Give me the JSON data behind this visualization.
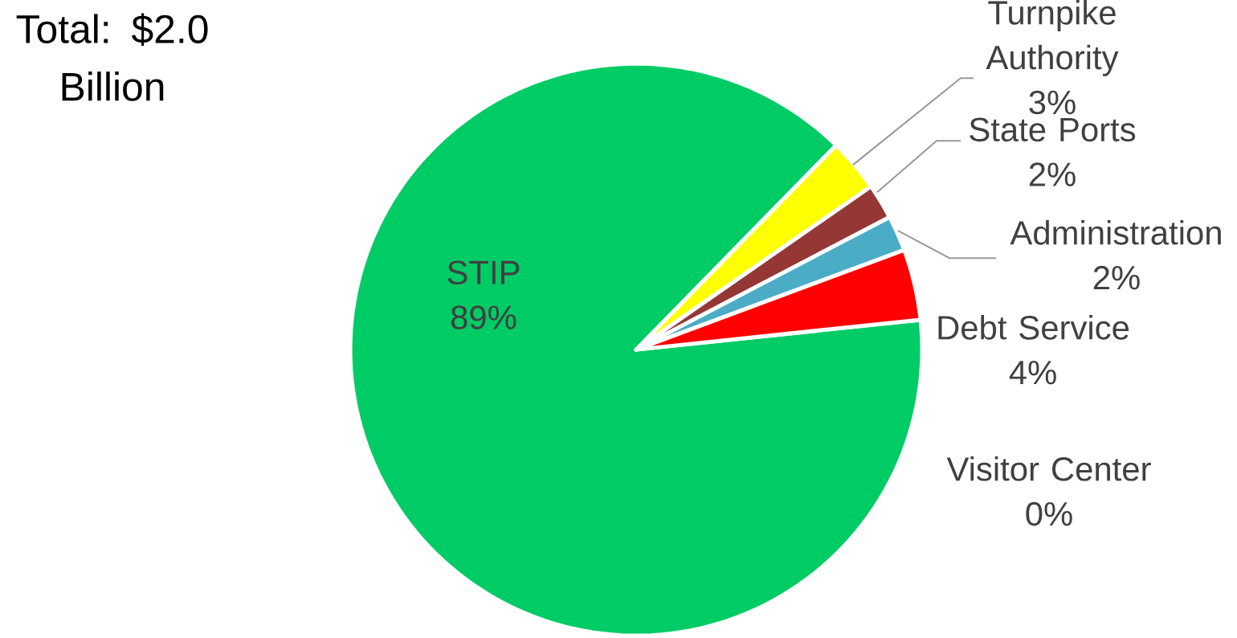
{
  "chart_data": {
    "type": "pie",
    "title": "Total: $2.0 Billion",
    "categories": [
      "STIP",
      "Turnpike Authority",
      "State Ports",
      "Administration",
      "Debt Service",
      "Visitor Center"
    ],
    "values": [
      89,
      3,
      2,
      2,
      4,
      0
    ],
    "colors": [
      "#00cc66",
      "#ffff00",
      "#953735",
      "#4bacc6",
      "#ff0000",
      "#f79646"
    ],
    "value_labels": [
      "89%",
      "3%",
      "2%",
      "2%",
      "4%",
      "0%"
    ]
  }
}
